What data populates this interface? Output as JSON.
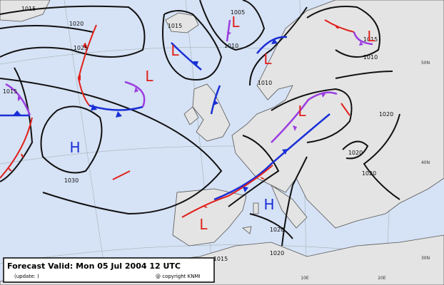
{
  "map": {
    "isobar_labels": [
      "1015",
      "1020",
      "1025",
      "1030",
      "1015",
      "1005",
      "1010",
      "1015",
      "1010",
      "1015",
      "1010",
      "1020",
      "1020",
      "1020",
      "1020",
      "1020",
      "1015"
    ],
    "pressure_centers": [
      "L",
      "L",
      "L",
      "L",
      "L",
      "L",
      "L",
      "H",
      "H"
    ],
    "grid_labels": [
      "50N",
      "40N",
      "30N",
      "10E",
      "20E"
    ]
  },
  "footer": {
    "title": "Forecast Valid:  Mon 05 Jul 2004 12 UTC",
    "update": "(update: )",
    "copyright": "@ copyright KNMI"
  }
}
